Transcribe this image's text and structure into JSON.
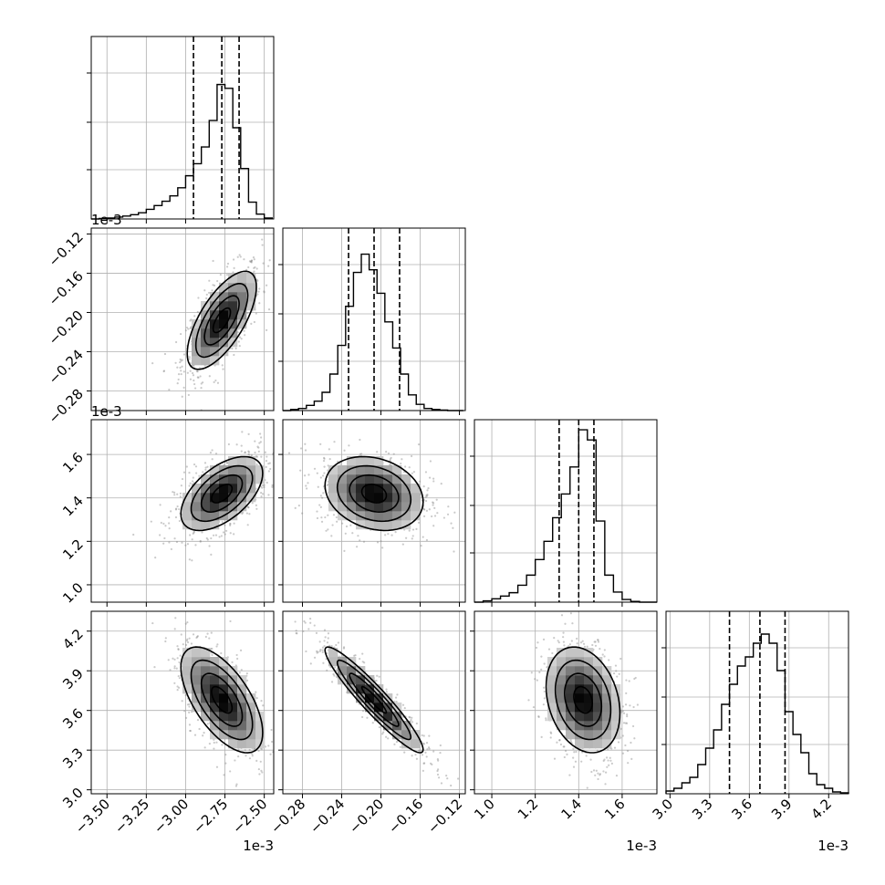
{
  "chart_data": {
    "type": "corner",
    "grid": true,
    "parameters": [
      {
        "range": [
          -3.6,
          -2.44
        ],
        "ticks": [
          -3.5,
          -3.25,
          -3.0,
          -2.75,
          -2.5
        ],
        "tick_labels": [
          "−3.50",
          "−3.25",
          "−3.00",
          "−2.75",
          "−2.50"
        ],
        "offset": "1e-3"
      },
      {
        "range": [
          -0.3,
          -0.114
        ],
        "ticks": [
          -0.28,
          -0.24,
          -0.2,
          -0.16,
          -0.12
        ],
        "tick_labels": [
          "−0.28",
          "−0.24",
          "−0.20",
          "−0.16",
          "−0.12"
        ],
        "offset": ""
      },
      {
        "range": [
          0.92,
          1.76
        ],
        "ticks": [
          1.0,
          1.2,
          1.4,
          1.6
        ],
        "tick_labels": [
          "1.0",
          "1.2",
          "1.4",
          "1.6"
        ],
        "offset": "1e-3"
      },
      {
        "range": [
          2.97,
          4.35
        ],
        "ticks": [
          3.0,
          3.3,
          3.6,
          3.9,
          4.2
        ],
        "tick_labels": [
          "3.0",
          "3.3",
          "3.6",
          "3.9",
          "4.2"
        ],
        "offset": "1e-3"
      }
    ],
    "row_offsets": [
      "",
      "1e-3",
      "1e-3",
      ""
    ],
    "histograms": [
      {
        "param": 0,
        "edges": [
          -3.6,
          -3.55,
          -3.5,
          -3.45,
          -3.4,
          -3.35,
          -3.3,
          -3.25,
          -3.2,
          -3.15,
          -3.1,
          -3.05,
          -3.0,
          -2.95,
          -2.9,
          -2.85,
          -2.8,
          -2.75,
          -2.7,
          -2.65,
          -2.6,
          -2.55,
          -2.5,
          -2.45
        ],
        "counts": [
          0,
          1,
          2,
          4,
          6,
          9,
          13,
          20,
          28,
          37,
          48,
          65,
          90,
          115,
          150,
          205,
          280,
          272,
          190,
          105,
          35,
          10,
          2
        ],
        "quantiles": [
          -2.95,
          -2.77,
          -2.66
        ],
        "ymax": 380
      },
      {
        "param": 1,
        "edges": [
          -0.3,
          -0.292,
          -0.284,
          -0.276,
          -0.268,
          -0.26,
          -0.252,
          -0.244,
          -0.236,
          -0.228,
          -0.22,
          -0.212,
          -0.204,
          -0.196,
          -0.188,
          -0.18,
          -0.172,
          -0.164,
          -0.156,
          -0.148,
          -0.14,
          -0.132,
          -0.124,
          -0.116
        ],
        "counts": [
          0,
          2,
          4,
          10,
          18,
          35,
          70,
          125,
          200,
          265,
          300,
          270,
          225,
          170,
          120,
          70,
          30,
          12,
          4,
          2,
          1,
          0,
          0
        ],
        "quantiles": [
          -0.233,
          -0.207,
          -0.181
        ],
        "ymax": 350
      },
      {
        "param": 2,
        "edges": [
          0.92,
          0.96,
          1.0,
          1.04,
          1.08,
          1.12,
          1.16,
          1.2,
          1.24,
          1.28,
          1.32,
          1.36,
          1.4,
          1.44,
          1.48,
          1.52,
          1.56,
          1.6,
          1.64,
          1.68,
          1.72,
          1.76
        ],
        "counts": [
          0,
          2,
          5,
          9,
          14,
          25,
          40,
          63,
          90,
          125,
          160,
          200,
          255,
          240,
          120,
          40,
          15,
          4,
          1,
          0,
          0
        ],
        "quantiles": [
          1.31,
          1.4,
          1.47
        ],
        "ymax": 270
      },
      {
        "param": 3,
        "edges": [
          2.97,
          3.03,
          3.09,
          3.15,
          3.21,
          3.27,
          3.33,
          3.39,
          3.45,
          3.51,
          3.57,
          3.63,
          3.69,
          3.75,
          3.81,
          3.87,
          3.93,
          3.99,
          4.05,
          4.11,
          4.17,
          4.23,
          4.29,
          4.35
        ],
        "counts": [
          3,
          6,
          12,
          18,
          32,
          50,
          70,
          98,
          120,
          140,
          150,
          165,
          175,
          165,
          135,
          90,
          65,
          45,
          22,
          10,
          6,
          2,
          1
        ],
        "quantiles": [
          3.45,
          3.68,
          3.87
        ],
        "ymax": 200
      }
    ],
    "pairs": [
      {
        "x_param": 0,
        "y_param": 1,
        "center": [
          -2.77,
          -0.208
        ],
        "sd": [
          0.11,
          0.025
        ],
        "rho": 0.68
      },
      {
        "x_param": 0,
        "y_param": 2,
        "center": [
          -2.77,
          1.42
        ],
        "sd": [
          0.13,
          0.085
        ],
        "rho": 0.55
      },
      {
        "x_param": 1,
        "y_param": 2,
        "center": [
          -0.207,
          1.42
        ],
        "sd": [
          0.025,
          0.085
        ],
        "rho": -0.22
      },
      {
        "x_param": 0,
        "y_param": 3,
        "center": [
          -2.77,
          3.68
        ],
        "sd": [
          0.13,
          0.2
        ],
        "rho": -0.62
      },
      {
        "x_param": 1,
        "y_param": 3,
        "center": [
          -0.207,
          3.68
        ],
        "sd": [
          0.025,
          0.2
        ],
        "rho": -0.94
      },
      {
        "x_param": 2,
        "y_param": 3,
        "center": [
          1.42,
          3.68
        ],
        "sd": [
          0.085,
          0.2
        ],
        "rho": -0.25
      }
    ],
    "contour_levels_sigma": [
      0.5,
      1.0,
      1.5,
      2.0
    ]
  }
}
